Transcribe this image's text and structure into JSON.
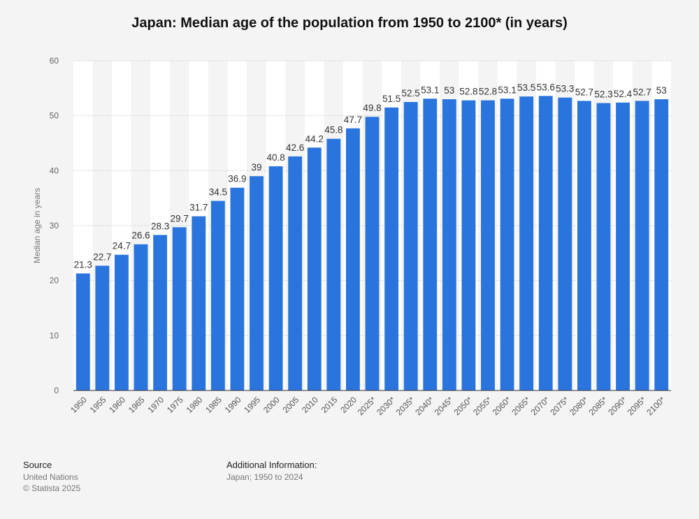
{
  "title": "Japan: Median age of the population from 1950 to 2100* (in years)",
  "chart_data": {
    "type": "bar",
    "title": "Japan: Median age of the population from 1950 to 2100* (in years)",
    "ylabel": "Median age in years",
    "ylim": [
      0,
      60
    ],
    "yticks": [
      0,
      10,
      20,
      30,
      40,
      50,
      60
    ],
    "grid": true,
    "categories": [
      "1950",
      "1955",
      "1960",
      "1965",
      "1970",
      "1975",
      "1980",
      "1985",
      "1990",
      "1995",
      "2000",
      "2005",
      "2010",
      "2015",
      "2020",
      "2025*",
      "2030*",
      "2035*",
      "2040*",
      "2045*",
      "2050*",
      "2055*",
      "2060*",
      "2065*",
      "2070*",
      "2075*",
      "2080*",
      "2085*",
      "2090*",
      "2095*",
      "2100*"
    ],
    "values": [
      21.3,
      22.7,
      24.7,
      26.6,
      28.3,
      29.7,
      31.7,
      34.5,
      36.9,
      39,
      40.8,
      42.6,
      44.2,
      45.8,
      47.7,
      49.8,
      51.5,
      52.5,
      53.1,
      53,
      52.8,
      52.8,
      53.1,
      53.5,
      53.6,
      53.3,
      52.7,
      52.3,
      52.4,
      52.7,
      53
    ],
    "bar_color": "#2a75dd"
  },
  "footer": {
    "source_heading": "Source",
    "source_lines": [
      "United Nations",
      "© Statista 2025"
    ],
    "info_heading": "Additional Information:",
    "info_lines": [
      "Japan; 1950 to 2024"
    ]
  }
}
